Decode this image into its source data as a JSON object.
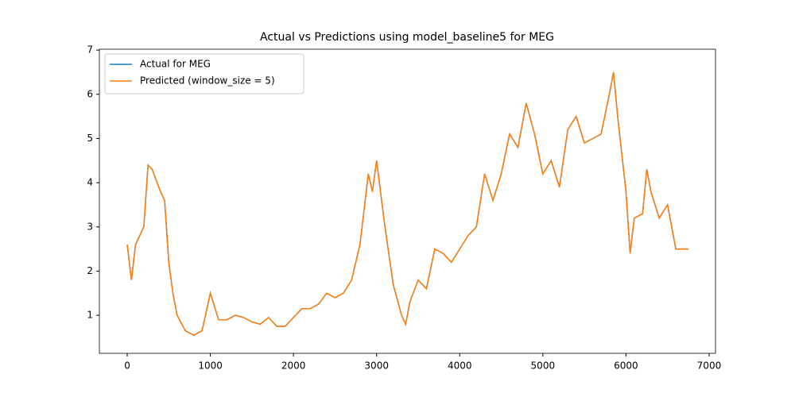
{
  "chart_data": {
    "type": "line",
    "title": "Actual vs Predictions using model_baseline5 for MEG",
    "x": [
      0,
      50,
      100,
      200,
      250,
      300,
      400,
      450,
      500,
      550,
      600,
      700,
      800,
      900,
      1000,
      1100,
      1200,
      1300,
      1400,
      1500,
      1600,
      1700,
      1800,
      1900,
      2000,
      2100,
      2200,
      2300,
      2400,
      2500,
      2600,
      2700,
      2800,
      2900,
      2950,
      3000,
      3100,
      3200,
      3300,
      3350,
      3400,
      3500,
      3600,
      3700,
      3800,
      3900,
      4000,
      4100,
      4200,
      4300,
      4400,
      4500,
      4600,
      4700,
      4800,
      4900,
      5000,
      5100,
      5200,
      5300,
      5400,
      5500,
      5600,
      5700,
      5800,
      5850,
      5900,
      6000,
      6050,
      6100,
      6200,
      6250,
      6300,
      6400,
      6500,
      6600,
      6700,
      6750
    ],
    "series": [
      {
        "name": "Actual for MEG",
        "color": "#1f77b4",
        "values": [
          2.6,
          1.8,
          2.6,
          3.0,
          4.4,
          4.3,
          3.8,
          3.6,
          2.2,
          1.5,
          1.0,
          0.65,
          0.55,
          0.65,
          1.5,
          0.9,
          0.9,
          1.0,
          0.95,
          0.85,
          0.8,
          0.95,
          0.75,
          0.75,
          0.95,
          1.15,
          1.15,
          1.25,
          1.5,
          1.4,
          1.5,
          1.8,
          2.6,
          4.2,
          3.8,
          4.5,
          3.0,
          1.7,
          1.0,
          0.8,
          1.3,
          1.8,
          1.6,
          2.5,
          2.4,
          2.2,
          2.5,
          2.8,
          3.0,
          4.2,
          3.6,
          4.2,
          5.1,
          4.8,
          5.8,
          5.1,
          4.2,
          4.5,
          3.9,
          5.2,
          5.5,
          4.9,
          5.0,
          5.1,
          6.0,
          6.5,
          5.5,
          3.8,
          2.4,
          3.2,
          3.3,
          4.3,
          3.8,
          3.2,
          3.5,
          2.5,
          2.5,
          2.5
        ]
      },
      {
        "name": "Predicted (window_size = 5)",
        "color": "#ff7f0e",
        "values": [
          2.6,
          1.8,
          2.6,
          3.0,
          4.4,
          4.3,
          3.8,
          3.6,
          2.2,
          1.5,
          1.0,
          0.65,
          0.55,
          0.65,
          1.5,
          0.9,
          0.9,
          1.0,
          0.95,
          0.85,
          0.8,
          0.95,
          0.75,
          0.75,
          0.95,
          1.15,
          1.15,
          1.25,
          1.5,
          1.4,
          1.5,
          1.8,
          2.6,
          4.2,
          3.8,
          4.5,
          3.0,
          1.7,
          1.0,
          0.8,
          1.3,
          1.8,
          1.6,
          2.5,
          2.4,
          2.2,
          2.5,
          2.8,
          3.0,
          4.2,
          3.6,
          4.2,
          5.1,
          4.8,
          5.8,
          5.1,
          4.2,
          4.5,
          3.9,
          5.2,
          5.5,
          4.9,
          5.0,
          5.1,
          6.0,
          6.5,
          5.5,
          3.8,
          2.4,
          3.2,
          3.3,
          4.3,
          3.8,
          3.2,
          3.5,
          2.5,
          2.5,
          2.5
        ]
      }
    ],
    "xlim": [
      -335,
      7077
    ],
    "ylim": [
      0.14,
      7.02
    ],
    "xticks": [
      0,
      1000,
      2000,
      3000,
      4000,
      5000,
      6000,
      7000
    ],
    "yticks": [
      1,
      2,
      3,
      4,
      5,
      6,
      7
    ],
    "legend": "upper left"
  }
}
